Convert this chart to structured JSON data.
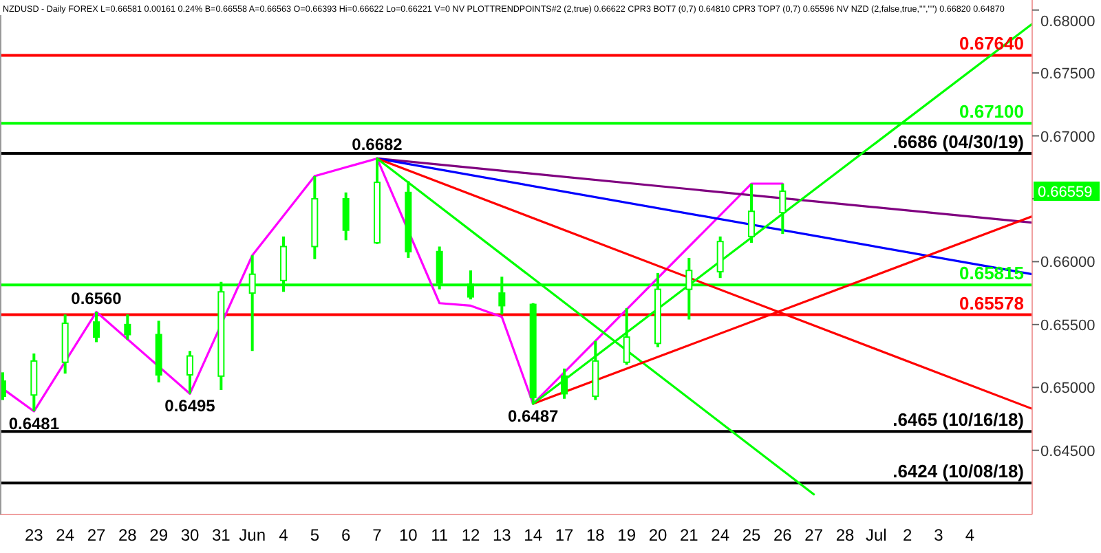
{
  "chart_data": {
    "type": "candlestick",
    "title": "NZDUSD - Daily  FOREX  L=0.66581  0.00161  0.24%   B=0.66558  A=0.66563  O=0.66393  Hi=0.66622  Lo=0.66221  V=0  NV  PLOTTRENDPOINTS#2 (2,true)  0.66622  CPR3 BOT7 (0,7)  0.64810  CPR3 TOP7 (0,7)  0.65596  NV NZD (2,false,true,\"\",\"\")  0.66820  0.64870",
    "categories": [
      null,
      "23",
      "24",
      "27",
      "28",
      "29",
      "30",
      "31",
      "Jun",
      "4",
      "5",
      "6",
      "7",
      "10",
      "11",
      "12",
      "13",
      "14",
      "17",
      "18",
      "19",
      "20",
      "21",
      "24",
      "25",
      "26",
      "27",
      "28",
      "Jul",
      "2",
      "3",
      "4",
      null,
      null
    ],
    "color": "#00ff00",
    "ohlc": [
      [
        0.6505,
        0.6512,
        0.649,
        0.6493
      ],
      [
        0.6494,
        0.6527,
        0.6481,
        0.6521
      ],
      [
        0.652,
        0.6558,
        0.6511,
        0.6551
      ],
      [
        0.6552,
        0.656,
        0.6536,
        0.654
      ],
      [
        0.655,
        0.6558,
        0.6538,
        0.6542
      ],
      [
        0.6542,
        0.6553,
        0.6504,
        0.651
      ],
      [
        0.651,
        0.6529,
        0.6495,
        0.6525
      ],
      [
        0.6509,
        0.6584,
        0.6498,
        0.6576
      ],
      [
        0.6575,
        0.6605,
        0.6529,
        0.659
      ],
      [
        0.6585,
        0.662,
        0.6576,
        0.6612
      ],
      [
        0.6612,
        0.6668,
        0.6602,
        0.665
      ],
      [
        0.665,
        0.6655,
        0.6617,
        0.6625
      ],
      [
        0.6615,
        0.6682,
        0.6614,
        0.6663
      ],
      [
        0.6655,
        0.6664,
        0.6603,
        0.6608
      ],
      [
        0.6608,
        0.6612,
        0.6578,
        0.6583
      ],
      [
        0.6582,
        0.6593,
        0.657,
        0.6572
      ],
      [
        0.6575,
        0.6588,
        0.6558,
        0.6565
      ],
      [
        0.6566,
        0.6567,
        0.6487,
        0.6492
      ],
      [
        0.6509,
        0.6515,
        0.6491,
        0.6495
      ],
      [
        0.6493,
        0.6537,
        0.649,
        0.6521
      ],
      [
        0.652,
        0.6563,
        0.6518,
        0.654
      ],
      [
        0.6535,
        0.6591,
        0.6532,
        0.6578
      ],
      [
        0.6578,
        0.6603,
        0.6554,
        0.6593
      ],
      [
        0.6592,
        0.662,
        0.6587,
        0.6616
      ],
      [
        0.662,
        0.6662,
        0.6615,
        0.664
      ],
      [
        0.6639,
        0.6662,
        0.6622,
        0.6656
      ],
      null,
      null,
      null,
      null,
      null,
      null,
      null,
      null
    ],
    "series": [
      {
        "type": "line",
        "color": "#ff00ff",
        "values": [
          0.6499,
          0.6481,
          null,
          0.656,
          null,
          null,
          0.6495,
          null,
          0.6605,
          null,
          0.6668,
          null,
          0.6682,
          null,
          0.6567,
          0.6565,
          0.6556,
          0.6487,
          null,
          null,
          null,
          null,
          null,
          null,
          0.6662,
          0.6662,
          null,
          null,
          null,
          null,
          null,
          null,
          null,
          null
        ]
      },
      {
        "type": "line",
        "color": "#800080",
        "values": [
          null,
          null,
          null,
          null,
          null,
          null,
          null,
          null,
          null,
          null,
          null,
          null,
          0.6682,
          null,
          null,
          null,
          null,
          null,
          null,
          null,
          null,
          null,
          null,
          null,
          null,
          null,
          null,
          null,
          null,
          null,
          null,
          null,
          null,
          0.6631
        ]
      },
      {
        "type": "line",
        "color": "#0000ff",
        "values": [
          null,
          null,
          null,
          null,
          null,
          null,
          null,
          null,
          null,
          null,
          null,
          null,
          0.6682,
          null,
          null,
          null,
          null,
          null,
          null,
          null,
          null,
          null,
          null,
          null,
          null,
          null,
          null,
          null,
          null,
          null,
          null,
          null,
          null,
          0.659
        ]
      },
      {
        "type": "line",
        "color": "#ff0000",
        "values": [
          null,
          null,
          null,
          null,
          null,
          null,
          null,
          null,
          null,
          null,
          null,
          null,
          0.6682,
          null,
          null,
          null,
          null,
          null,
          null,
          null,
          null,
          null,
          null,
          null,
          null,
          null,
          null,
          null,
          null,
          null,
          null,
          null,
          null,
          0.6483
        ]
      },
      {
        "type": "line",
        "color": "#00ff00",
        "values": [
          null,
          null,
          null,
          null,
          null,
          null,
          null,
          null,
          null,
          null,
          null,
          null,
          0.6682,
          null,
          null,
          null,
          null,
          null,
          null,
          null,
          null,
          null,
          null,
          null,
          null,
          null,
          0.6415,
          null,
          null,
          null,
          null,
          null,
          null,
          null
        ]
      },
      {
        "type": "line",
        "color": "#ff0000",
        "values": [
          null,
          null,
          null,
          null,
          null,
          null,
          null,
          null,
          null,
          null,
          null,
          null,
          null,
          null,
          null,
          null,
          null,
          0.6487,
          null,
          null,
          null,
          null,
          null,
          null,
          null,
          null,
          null,
          null,
          null,
          null,
          null,
          null,
          null,
          0.6636
        ]
      },
      {
        "type": "line",
        "color": "#00ff00",
        "values": [
          null,
          null,
          null,
          null,
          null,
          null,
          null,
          null,
          null,
          null,
          null,
          null,
          null,
          null,
          null,
          null,
          null,
          0.6487,
          null,
          null,
          null,
          null,
          null,
          null,
          null,
          null,
          null,
          null,
          null,
          null,
          null,
          null,
          null,
          0.6789
        ]
      }
    ],
    "ylim": [
      0.6399,
      0.6808
    ],
    "yticks": [
      {
        "value": 0.645,
        "label": "0.64500"
      },
      {
        "value": 0.65,
        "label": "0.65000"
      },
      {
        "value": 0.655,
        "label": "0.65500"
      },
      {
        "value": 0.66,
        "label": "0.66000"
      },
      {
        "value": 0.665,
        "label": null
      },
      {
        "value": 0.67,
        "label": "0.67000"
      },
      {
        "value": 0.675,
        "label": "0.67500"
      },
      {
        "value": 0.68,
        "label": "0.68000"
      }
    ],
    "ref_lines": [
      {
        "axis": "y",
        "value": 0.6764,
        "label": "0.67640",
        "color": "#ff0000"
      },
      {
        "axis": "y",
        "value": 0.671,
        "label": "0.67100",
        "color": "#00ff00"
      },
      {
        "axis": "y",
        "value": 0.6686,
        "label": ".6686 (04/30/19)",
        "color": "#000000"
      },
      {
        "axis": "y",
        "value": 0.65815,
        "label": "0.65815",
        "color": "#00ff00"
      },
      {
        "axis": "y",
        "value": 0.65578,
        "label": "0.65578",
        "color": "#ff0000"
      },
      {
        "axis": "y",
        "value": 0.6465,
        "label": ".6465 (10/16/18)",
        "color": "#000000"
      },
      {
        "axis": "y",
        "value": 0.6424,
        "label": ".6424 (10/08/18)",
        "color": "#000000"
      }
    ],
    "annotations": [
      {
        "text": "0.6682",
        "x": "7",
        "y": 0.6682
      },
      {
        "text": "0.6560",
        "x": "27",
        "y": 0.656
      },
      {
        "text": "0.6481",
        "x": "23",
        "y": 0.6481
      },
      {
        "text": "0.6495",
        "x": "30",
        "y": 0.6495
      },
      {
        "text": "0.6487",
        "x": "14",
        "y": 0.6487
      },
      "0.66559"
    ],
    "grid": false
  }
}
